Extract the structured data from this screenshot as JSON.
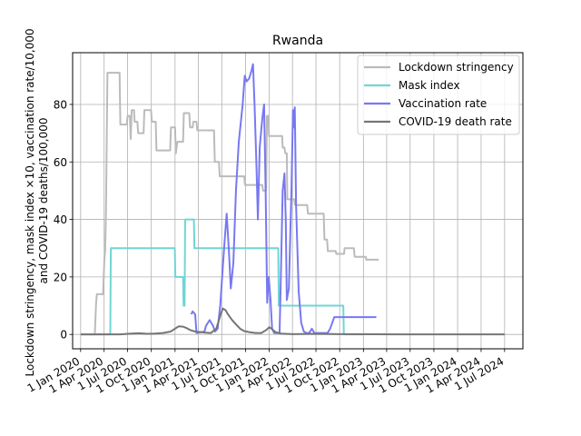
{
  "chart_data": {
    "type": "line",
    "title": "Rwanda",
    "ylabel_lines": [
      "Lockdown stringency, mask index ×10, vaccination rate/10,000",
      "and COVID-19 deaths/100,000"
    ],
    "xlabel": "",
    "ylim": [
      -5,
      98
    ],
    "xlim": [
      "2019-12-01",
      "2024-09-10"
    ],
    "y_ticks": [
      0,
      20,
      40,
      60,
      80
    ],
    "x_ticks": [
      {
        "date": "2020-01-01",
        "label": "1 Jan 2020"
      },
      {
        "date": "2020-04-01",
        "label": "1 Apr 2020"
      },
      {
        "date": "2020-07-01",
        "label": "1 Jul 2020"
      },
      {
        "date": "2020-10-01",
        "label": "1 Oct 2020"
      },
      {
        "date": "2021-01-01",
        "label": "1 Jan 2021"
      },
      {
        "date": "2021-04-01",
        "label": "1 Apr 2021"
      },
      {
        "date": "2021-07-01",
        "label": "1 Jul 2021"
      },
      {
        "date": "2021-10-01",
        "label": "1 Oct 2021"
      },
      {
        "date": "2022-01-01",
        "label": "1 Jan 2022"
      },
      {
        "date": "2022-04-01",
        "label": "1 Apr 2022"
      },
      {
        "date": "2022-07-01",
        "label": "1 Jul 2022"
      },
      {
        "date": "2022-10-01",
        "label": "1 Oct 2022"
      },
      {
        "date": "2023-01-01",
        "label": "1 Jan 2023"
      },
      {
        "date": "2023-04-01",
        "label": "1 Apr 2023"
      },
      {
        "date": "2023-07-01",
        "label": "1 Jul 2023"
      },
      {
        "date": "2023-10-01",
        "label": "1 Oct 2023"
      },
      {
        "date": "2024-01-01",
        "label": "1 Jan 2024"
      },
      {
        "date": "2024-04-01",
        "label": "1 Apr 2024"
      },
      {
        "date": "2024-07-01",
        "label": "1 Jul 2024"
      }
    ],
    "grid": true,
    "legend_position": "top-right",
    "series": [
      {
        "name": "Lockdown stringency",
        "color": "#bbbbbb",
        "points": [
          [
            "2020-01-01",
            0
          ],
          [
            "2020-01-20",
            0
          ],
          [
            "2020-02-25",
            0
          ],
          [
            "2020-03-01",
            11
          ],
          [
            "2020-03-04",
            14
          ],
          [
            "2020-03-28",
            14
          ],
          [
            "2020-04-02",
            26
          ],
          [
            "2020-04-05",
            29
          ],
          [
            "2020-04-08",
            41
          ],
          [
            "2020-04-14",
            91
          ],
          [
            "2020-05-31",
            91
          ],
          [
            "2020-06-03",
            73
          ],
          [
            "2020-06-28",
            73
          ],
          [
            "2020-07-01",
            76
          ],
          [
            "2020-07-10",
            76
          ],
          [
            "2020-07-13",
            68
          ],
          [
            "2020-07-17",
            78
          ],
          [
            "2020-07-26",
            78
          ],
          [
            "2020-07-28",
            74
          ],
          [
            "2020-08-08",
            74
          ],
          [
            "2020-08-11",
            70
          ],
          [
            "2020-09-01",
            70
          ],
          [
            "2020-09-04",
            78
          ],
          [
            "2020-09-30",
            78
          ],
          [
            "2020-10-03",
            74
          ],
          [
            "2020-10-18",
            74
          ],
          [
            "2020-10-21",
            64
          ],
          [
            "2020-12-13",
            64
          ],
          [
            "2020-12-16",
            72
          ],
          [
            "2021-01-01",
            72
          ],
          [
            "2021-01-04",
            63
          ],
          [
            "2021-01-10",
            67
          ],
          [
            "2021-02-01",
            67
          ],
          [
            "2021-02-04",
            77
          ],
          [
            "2021-02-25",
            77
          ],
          [
            "2021-02-28",
            72
          ],
          [
            "2021-03-10",
            72
          ],
          [
            "2021-03-13",
            74
          ],
          [
            "2021-03-25",
            74
          ],
          [
            "2021-03-28",
            71
          ],
          [
            "2021-06-01",
            71
          ],
          [
            "2021-06-04",
            60
          ],
          [
            "2021-06-20",
            60
          ],
          [
            "2021-06-23",
            55
          ],
          [
            "2021-09-26",
            55
          ],
          [
            "2021-09-29",
            52
          ],
          [
            "2021-12-05",
            52
          ],
          [
            "2021-12-08",
            50
          ],
          [
            "2021-12-20",
            50
          ],
          [
            "2021-12-23",
            76
          ],
          [
            "2021-12-28",
            76
          ],
          [
            "2021-12-31",
            69
          ],
          [
            "2022-02-20",
            69
          ],
          [
            "2022-02-22",
            65
          ],
          [
            "2022-03-01",
            65
          ],
          [
            "2022-03-04",
            63
          ],
          [
            "2022-03-10",
            63
          ],
          [
            "2022-03-12",
            47
          ],
          [
            "2022-04-08",
            47
          ],
          [
            "2022-04-11",
            45
          ],
          [
            "2022-05-28",
            45
          ],
          [
            "2022-05-31",
            42
          ],
          [
            "2022-07-31",
            42
          ],
          [
            "2022-08-03",
            33
          ],
          [
            "2022-08-13",
            33
          ],
          [
            "2022-08-16",
            29
          ],
          [
            "2022-09-15",
            29
          ],
          [
            "2022-09-18",
            28
          ],
          [
            "2022-10-18",
            28
          ],
          [
            "2022-10-20",
            30
          ],
          [
            "2022-11-25",
            30
          ],
          [
            "2022-11-28",
            27
          ],
          [
            "2023-01-10",
            27
          ],
          [
            "2023-01-12",
            26
          ],
          [
            "2023-03-01",
            26
          ]
        ]
      },
      {
        "name": "Mask index",
        "color": "#6fd6d4",
        "points": [
          [
            "2020-01-01",
            0
          ],
          [
            "2020-04-25",
            0
          ],
          [
            "2020-04-27",
            30
          ],
          [
            "2020-12-31",
            30
          ],
          [
            "2021-01-02",
            20
          ],
          [
            "2021-02-01",
            20
          ],
          [
            "2021-02-03",
            10
          ],
          [
            "2021-02-07",
            10
          ],
          [
            "2021-02-09",
            40
          ],
          [
            "2021-03-15",
            40
          ],
          [
            "2021-03-17",
            30
          ],
          [
            "2022-02-05",
            30
          ],
          [
            "2022-02-07",
            10
          ],
          [
            "2022-10-15",
            10
          ],
          [
            "2022-10-17",
            0
          ],
          [
            "2023-01-01",
            0
          ]
        ]
      },
      {
        "name": "Vaccination rate",
        "color": "#7878f2",
        "points": [
          [
            "2021-03-05",
            7
          ],
          [
            "2021-03-10",
            8
          ],
          [
            "2021-03-20",
            7
          ],
          [
            "2021-03-25",
            0.5
          ],
          [
            "2021-04-25",
            1
          ],
          [
            "2021-05-01",
            3
          ],
          [
            "2021-05-15",
            5
          ],
          [
            "2021-05-28",
            3
          ],
          [
            "2021-06-05",
            1
          ],
          [
            "2021-06-15",
            2
          ],
          [
            "2021-06-25",
            10
          ],
          [
            "2021-07-10",
            30
          ],
          [
            "2021-07-20",
            42
          ],
          [
            "2021-07-28",
            30
          ],
          [
            "2021-08-05",
            16
          ],
          [
            "2021-08-15",
            25
          ],
          [
            "2021-08-25",
            50
          ],
          [
            "2021-09-05",
            67
          ],
          [
            "2021-09-20",
            80
          ],
          [
            "2021-09-28",
            90
          ],
          [
            "2021-10-05",
            88
          ],
          [
            "2021-10-15",
            89
          ],
          [
            "2021-10-25",
            92
          ],
          [
            "2021-10-30",
            94
          ],
          [
            "2021-11-05",
            80
          ],
          [
            "2021-11-12",
            60
          ],
          [
            "2021-11-18",
            40
          ],
          [
            "2021-11-25",
            65
          ],
          [
            "2021-12-05",
            75
          ],
          [
            "2021-12-12",
            80
          ],
          [
            "2021-12-18",
            50
          ],
          [
            "2021-12-24",
            11
          ],
          [
            "2021-12-30",
            20
          ],
          [
            "2022-01-06",
            12
          ],
          [
            "2022-01-12",
            2
          ],
          [
            "2022-01-20",
            0.5
          ],
          [
            "2022-02-10",
            0.5
          ],
          [
            "2022-02-15",
            20
          ],
          [
            "2022-02-22",
            50
          ],
          [
            "2022-03-01",
            56
          ],
          [
            "2022-03-06",
            40
          ],
          [
            "2022-03-10",
            12
          ],
          [
            "2022-03-18",
            16
          ],
          [
            "2022-03-28",
            50
          ],
          [
            "2022-04-03",
            78
          ],
          [
            "2022-04-06",
            72
          ],
          [
            "2022-04-10",
            79
          ],
          [
            "2022-04-15",
            45
          ],
          [
            "2022-04-25",
            15
          ],
          [
            "2022-05-05",
            4
          ],
          [
            "2022-05-15",
            1
          ],
          [
            "2022-05-25",
            0.5
          ],
          [
            "2022-06-05",
            0.5
          ],
          [
            "2022-06-15",
            2
          ],
          [
            "2022-06-25",
            0.5
          ],
          [
            "2022-08-15",
            0.5
          ],
          [
            "2022-08-25",
            2
          ],
          [
            "2022-09-10",
            6
          ],
          [
            "2022-10-01",
            6
          ],
          [
            "2022-12-01",
            6
          ],
          [
            "2023-02-20",
            6
          ]
        ]
      },
      {
        "name": "COVID-19 death rate",
        "color": "#757575",
        "points": [
          [
            "2020-01-01",
            0
          ],
          [
            "2020-06-01",
            0
          ],
          [
            "2020-07-15",
            0.3
          ],
          [
            "2020-08-15",
            0.4
          ],
          [
            "2020-09-15",
            0.2
          ],
          [
            "2020-10-15",
            0.3
          ],
          [
            "2020-11-15",
            0.5
          ],
          [
            "2020-12-15",
            1.0
          ],
          [
            "2021-01-01",
            2.0
          ],
          [
            "2021-01-15",
            2.8
          ],
          [
            "2021-02-01",
            2.7
          ],
          [
            "2021-02-15",
            2.2
          ],
          [
            "2021-03-01",
            1.5
          ],
          [
            "2021-03-20",
            1.0
          ],
          [
            "2021-04-10",
            0.8
          ],
          [
            "2021-05-01",
            0.6
          ],
          [
            "2021-05-20",
            0.5
          ],
          [
            "2021-06-10",
            2.0
          ],
          [
            "2021-06-25",
            6.5
          ],
          [
            "2021-07-05",
            9.0
          ],
          [
            "2021-07-15",
            8.5
          ],
          [
            "2021-07-25",
            7.0
          ],
          [
            "2021-08-10",
            5.0
          ],
          [
            "2021-08-25",
            3.5
          ],
          [
            "2021-09-10",
            2.0
          ],
          [
            "2021-09-25",
            1.2
          ],
          [
            "2021-10-15",
            0.8
          ],
          [
            "2021-11-10",
            0.5
          ],
          [
            "2021-12-01",
            0.5
          ],
          [
            "2021-12-20",
            1.5
          ],
          [
            "2022-01-01",
            2.5
          ],
          [
            "2022-01-10",
            2.0
          ],
          [
            "2022-01-25",
            0.8
          ],
          [
            "2022-02-15",
            0.3
          ],
          [
            "2022-04-01",
            0.1
          ],
          [
            "2022-07-01",
            0.2
          ],
          [
            "2022-10-01",
            0.1
          ],
          [
            "2023-06-01",
            0
          ],
          [
            "2024-07-01",
            0
          ]
        ]
      }
    ]
  }
}
